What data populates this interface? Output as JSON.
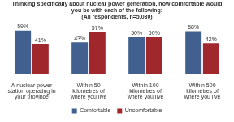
{
  "chart_data": {
    "type": "bar",
    "title": "Thinking specifically about nuclear power generation, how comfortable would you be with each of the following:",
    "subtitle": "(All respondents, n=5,030)",
    "categories": [
      "A nuclear power station operating in your province",
      "Within 50 kilometres of where you live",
      "Within 100 kilometres of where you live",
      "Within 500 kilometres of where you live"
    ],
    "series": [
      {
        "name": "Comfortable",
        "color": "#41608f",
        "values": [
          59,
          43,
          50,
          58
        ],
        "value_labels": [
          "59%",
          "43%",
          "50%",
          "58%"
        ]
      },
      {
        "name": "Uncomfortable",
        "color": "#a0282c",
        "values": [
          41,
          57,
          50,
          42
        ],
        "value_labels": [
          "41%",
          "57%",
          "50%",
          "42%"
        ]
      }
    ],
    "ylim": [
      0,
      70
    ],
    "grid": false,
    "legend": "bottom",
    "data_labels": true,
    "tick_labels": "x"
  }
}
